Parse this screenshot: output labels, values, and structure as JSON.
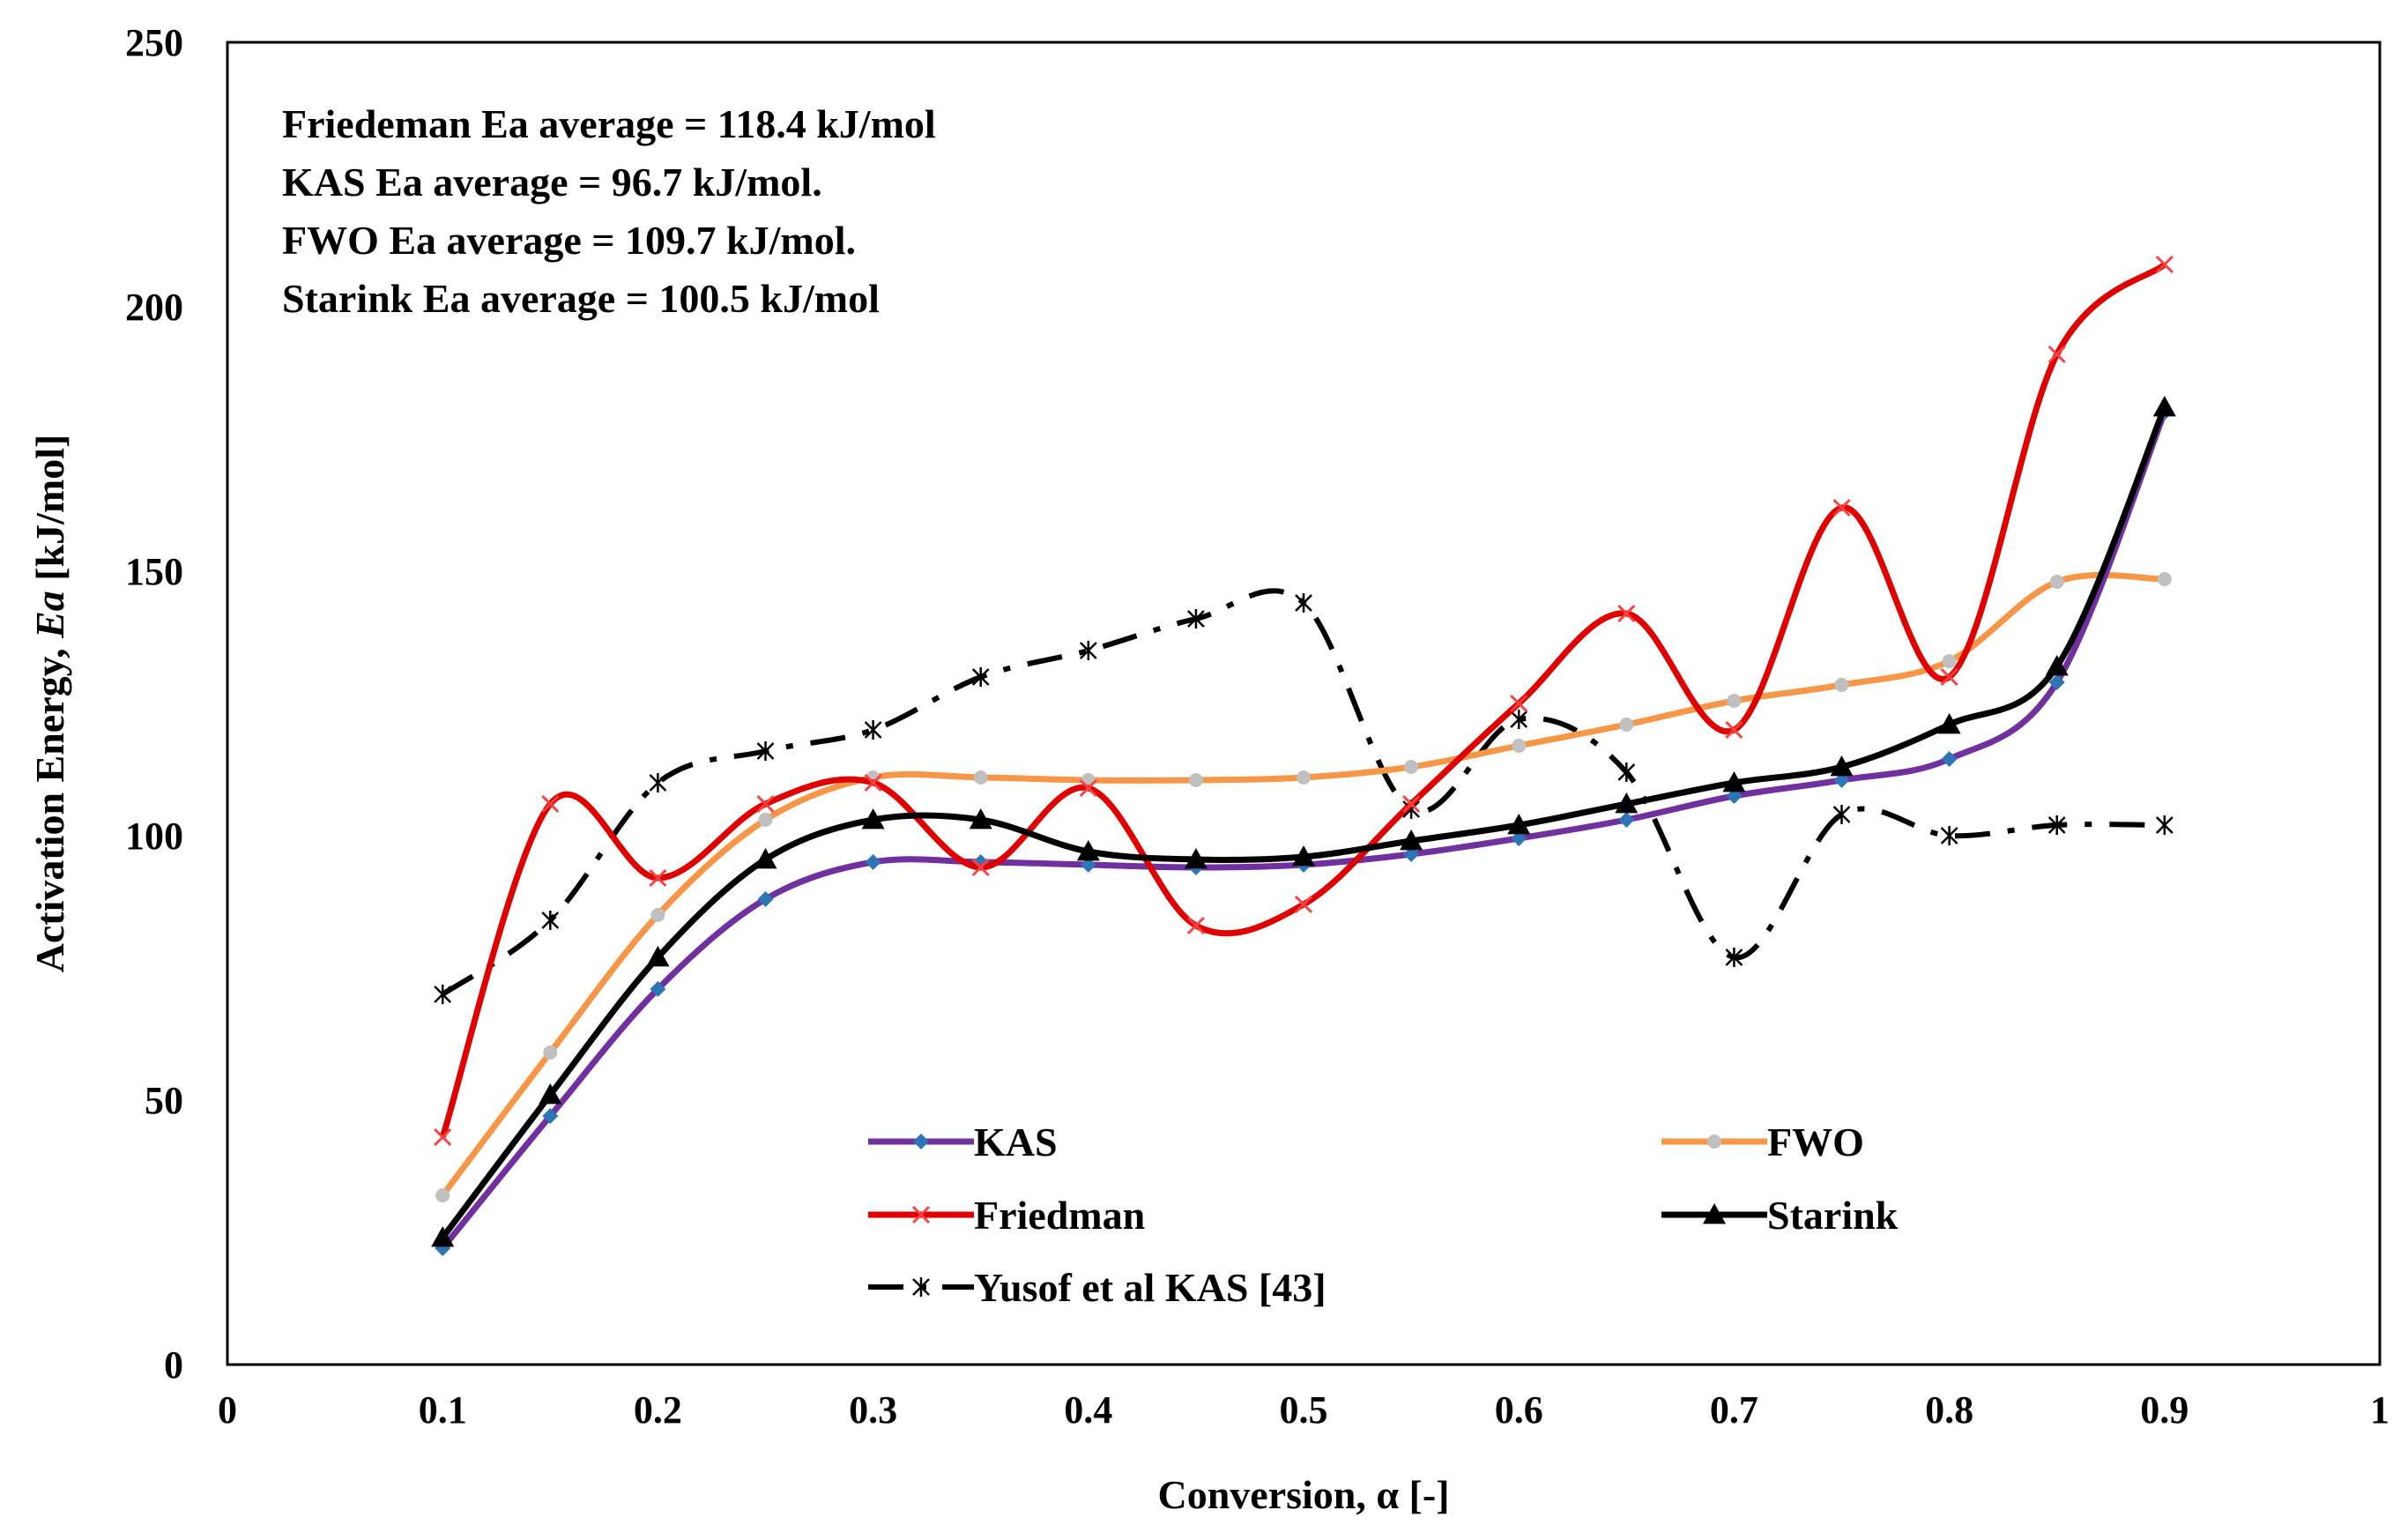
{
  "chart_data": {
    "type": "line",
    "title": "",
    "xlabel": "Conversion, α [-]",
    "ylabel_prefix": "Activation Energy, ",
    "ylabel_italic": "Ea",
    "ylabel_suffix": " [kJ/mol]",
    "xlim": [
      0,
      1
    ],
    "ylim": [
      0,
      250
    ],
    "x_ticks": [
      0,
      0.1,
      0.2,
      0.3,
      0.4,
      0.5,
      0.6,
      0.7,
      0.8,
      0.9,
      1
    ],
    "x_tick_labels": [
      "0",
      "0.1",
      "0.2",
      "0.3",
      "0.4",
      "0.5",
      "0.6",
      "0.7",
      "0.8",
      "0.9",
      "1"
    ],
    "y_ticks": [
      0,
      50,
      100,
      150,
      200,
      250
    ],
    "y_tick_labels": [
      "0",
      "50",
      "100",
      "150",
      "200",
      "250"
    ],
    "grid": false,
    "legend_position": "bottom-center",
    "annotations": [
      "Friedeman Ea average = 118.4 kJ/mol",
      "KAS Ea average = 96.7 kJ/mol.",
      "FWO Ea average = 109.7 kJ/mol.",
      "Starink Ea average = 100.5 kJ/mol"
    ],
    "x": [
      0.1,
      0.15,
      0.2,
      0.25,
      0.3,
      0.35,
      0.4,
      0.45,
      0.5,
      0.55,
      0.6,
      0.65,
      0.7,
      0.75,
      0.8,
      0.85,
      0.9
    ],
    "series": [
      {
        "name": "KAS",
        "color": "#7030a0",
        "marker": "diamond",
        "marker_color": "#2e75b6",
        "dash": "solid",
        "values": [
          22,
          47,
          71,
          88,
          95,
          95,
          94.5,
          94,
          94.5,
          96.5,
          99.5,
          103,
          107.5,
          110.5,
          114.5,
          129,
          180
        ]
      },
      {
        "name": "FWO",
        "color": "#f79646",
        "marker": "circle",
        "marker_color": "#c0c0c0",
        "dash": "solid",
        "values": [
          32,
          59,
          85,
          103,
          111,
          111,
          110.5,
          110.5,
          111,
          113,
          117,
          121,
          125.5,
          128.5,
          133,
          148,
          148.5
        ]
      },
      {
        "name": "Friedman",
        "color": "#e00000",
        "marker": "x",
        "marker_color": "#ff4040",
        "dash": "solid",
        "values": [
          43,
          106,
          92,
          106,
          110,
          94,
          109,
          83,
          87,
          106,
          125,
          142,
          120,
          162,
          130,
          191,
          208
        ]
      },
      {
        "name": "Starink",
        "color": "#000000",
        "marker": "triangle",
        "marker_color": "#000000",
        "dash": "solid",
        "values": [
          24,
          51,
          77,
          95.5,
          103,
          103,
          97,
          95.5,
          96,
          99,
          102,
          106,
          110,
          113,
          121,
          132,
          181
        ]
      },
      {
        "name": "Yusof et al KAS [43]",
        "color": "#000000",
        "marker": "asterisk",
        "marker_color": "#000000",
        "dash": "dashdot",
        "values": [
          70,
          84,
          110,
          116,
          120,
          130,
          135,
          141,
          144,
          105,
          122,
          112,
          77,
          104,
          100,
          102,
          102
        ]
      }
    ]
  }
}
